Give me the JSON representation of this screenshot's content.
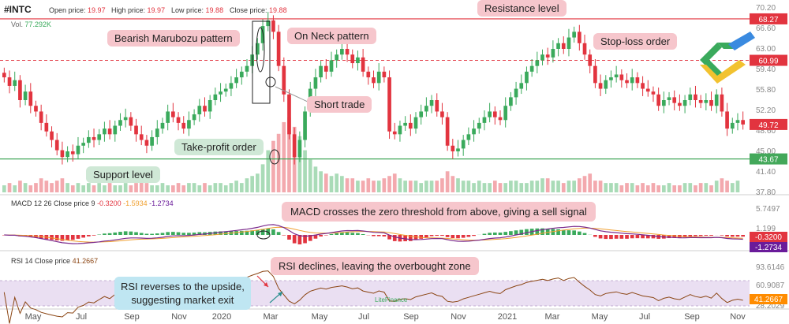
{
  "header": {
    "symbol": "#INTC",
    "open_label": "Open price:",
    "open_value": "19.97",
    "high_label": "High price:",
    "high_value": "19.97",
    "low_label": "Low price:",
    "low_value": "19.88",
    "close_label": "Close price:",
    "close_value": "19.88",
    "vol_label": "Vol.",
    "vol_value": "77.292K"
  },
  "callouts": {
    "resistance": "Resistance level",
    "bearish": "Bearish Marubozu pattern",
    "onneck": "On Neck pattern",
    "stoploss": "Stop-loss order",
    "short": "Short trade",
    "takeprofit": "Take-profit order",
    "support": "Support level",
    "macd_cross": "MACD crosses the zero threshold from above, giving a sell signal",
    "rsi_declines": "RSI declines, leaving the overbought zone",
    "rsi_reverses_1": "RSI reverses to the upside,",
    "rsi_reverses_2": "suggesting market exit"
  },
  "macd_header": {
    "label": "MACD 12 26 Close price 9",
    "v1": "-0.3200",
    "v2": "-1.5934",
    "v3": "-1.2734"
  },
  "rsi_header": {
    "label": "RSI 14 Close price",
    "v1": "41.2667"
  },
  "watermark": "LiteFinance",
  "chart_data": [
    {
      "type": "candlestick",
      "price_ticks": [
        70.2,
        66.6,
        63.0,
        59.4,
        55.8,
        52.2,
        48.6,
        45.0,
        41.4,
        37.8
      ],
      "price_range": [
        37.8,
        70.2
      ],
      "badges": [
        {
          "value": "68.27",
          "color": "#e2343f",
          "text": "#ffffff"
        },
        {
          "value": "60.99",
          "color": "#e2343f",
          "text": "#ffffff"
        },
        {
          "value": "49.72",
          "color": "#e2343f",
          "text": "#ffffff"
        },
        {
          "value": "43.67",
          "color": "#43a85a",
          "text": "#ffffff"
        }
      ],
      "lines": {
        "resistance": 68.27,
        "stop_loss": 60.99,
        "support": 43.67
      },
      "x_labels": [
        "May",
        "Jul",
        "Sep",
        "Nov",
        "2020",
        "Mar",
        "May",
        "Jul",
        "Sep",
        "Nov",
        "2021",
        "Mar",
        "May",
        "Jul",
        "Sep",
        "Nov"
      ],
      "closes": [
        58.0,
        56.5,
        57.5,
        54.0,
        55.5,
        53.0,
        52.0,
        50.0,
        48.5,
        47.0,
        45.2,
        44.0,
        45.0,
        44.5,
        46.0,
        46.5,
        47.5,
        47.0,
        48.0,
        49.0,
        48.0,
        49.5,
        50.5,
        51.0,
        49.5,
        48.0,
        47.0,
        46.0,
        47.5,
        49.0,
        50.0,
        52.0,
        51.0,
        50.0,
        49.0,
        50.5,
        51.5,
        53.0,
        52.0,
        54.0,
        55.0,
        55.5,
        56.0,
        57.0,
        58.0,
        59.0,
        60.0,
        62.0,
        64.0,
        67.0,
        68.0,
        66.0,
        60.0,
        55.0,
        48.0,
        44.0,
        47.0,
        52.0,
        56.0,
        58.0,
        60.0,
        59.0,
        61.0,
        62.0,
        63.0,
        62.0,
        60.5,
        61.5,
        59.0,
        58.0,
        57.0,
        59.0,
        58.0,
        48.5,
        48.0,
        49.5,
        50.0,
        49.0,
        51.0,
        52.0,
        53.0,
        54.0,
        52.0,
        51.0,
        46.0,
        45.0,
        45.5,
        47.0,
        48.0,
        49.0,
        50.0,
        51.0,
        52.0,
        51.0,
        50.5,
        53.0,
        54.5,
        56.0,
        57.0,
        59.0,
        60.0,
        61.0,
        62.0,
        61.5,
        63.0,
        64.0,
        63.0,
        65.0,
        66.0,
        64.0,
        62.0,
        60.0,
        57.0,
        56.0,
        57.5,
        58.0,
        58.5,
        57.5,
        57.0,
        58.0,
        57.0,
        56.0,
        55.5,
        55.0,
        53.0,
        54.0,
        54.5,
        53.5,
        53.0,
        54.0,
        55.0,
        54.0,
        53.5,
        54.0,
        53.0,
        55.0,
        52.0,
        49.0,
        50.0,
        50.5,
        49.72
      ],
      "volume": [
        3,
        4,
        3,
        5,
        4,
        3,
        4,
        6,
        5,
        4,
        5,
        6,
        4,
        3,
        4,
        3,
        4,
        3,
        4,
        3,
        4,
        3,
        3,
        4,
        3,
        4,
        5,
        4,
        3,
        3,
        4,
        3,
        3,
        4,
        3,
        4,
        4,
        3,
        4,
        3,
        4,
        4,
        3,
        4,
        5,
        4,
        6,
        7,
        8,
        12,
        18,
        22,
        25,
        30,
        32,
        28,
        24,
        18,
        14,
        11,
        9,
        8,
        7,
        8,
        7,
        6,
        6,
        5,
        5,
        6,
        5,
        5,
        6,
        7,
        8,
        6,
        5,
        5,
        5,
        4,
        5,
        5,
        5,
        6,
        9,
        7,
        6,
        5,
        5,
        4,
        5,
        4,
        4,
        5,
        4,
        4,
        5,
        5,
        4,
        4,
        5,
        5,
        6,
        6,
        5,
        5,
        4,
        5,
        5,
        6,
        7,
        8,
        5,
        5,
        4,
        4,
        4,
        3,
        4,
        4,
        3,
        4,
        3,
        4,
        3,
        3,
        4,
        3,
        3,
        4,
        4,
        3,
        4,
        4,
        3,
        5,
        6,
        5,
        4,
        5
      ],
      "title": ""
    },
    {
      "type": "line",
      "name": "MACD",
      "ticks": [
        5.7497,
        1.199,
        -0.32,
        -1.2734
      ],
      "badges": [
        {
          "value": "-0.3200",
          "color": "#e2343f",
          "text": "#ffffff"
        },
        {
          "value": "-1.2734",
          "color": "#6a1b9a",
          "text": "#ffffff"
        }
      ]
    },
    {
      "type": "line",
      "name": "RSI",
      "ticks": [
        93.6146,
        60.9087,
        41.2667,
        28.2029
      ],
      "badges": [
        {
          "value": "41.2667",
          "color": "#ff8c00",
          "text": "#ffffff"
        }
      ]
    }
  ],
  "colors": {
    "up": "#3aaa5c",
    "down": "#e2343f",
    "macd_line": "#7b2a8c",
    "signal_line": "#f0a030",
    "rsi_line": "#8b4513",
    "rsi_band": "#eadff2"
  }
}
